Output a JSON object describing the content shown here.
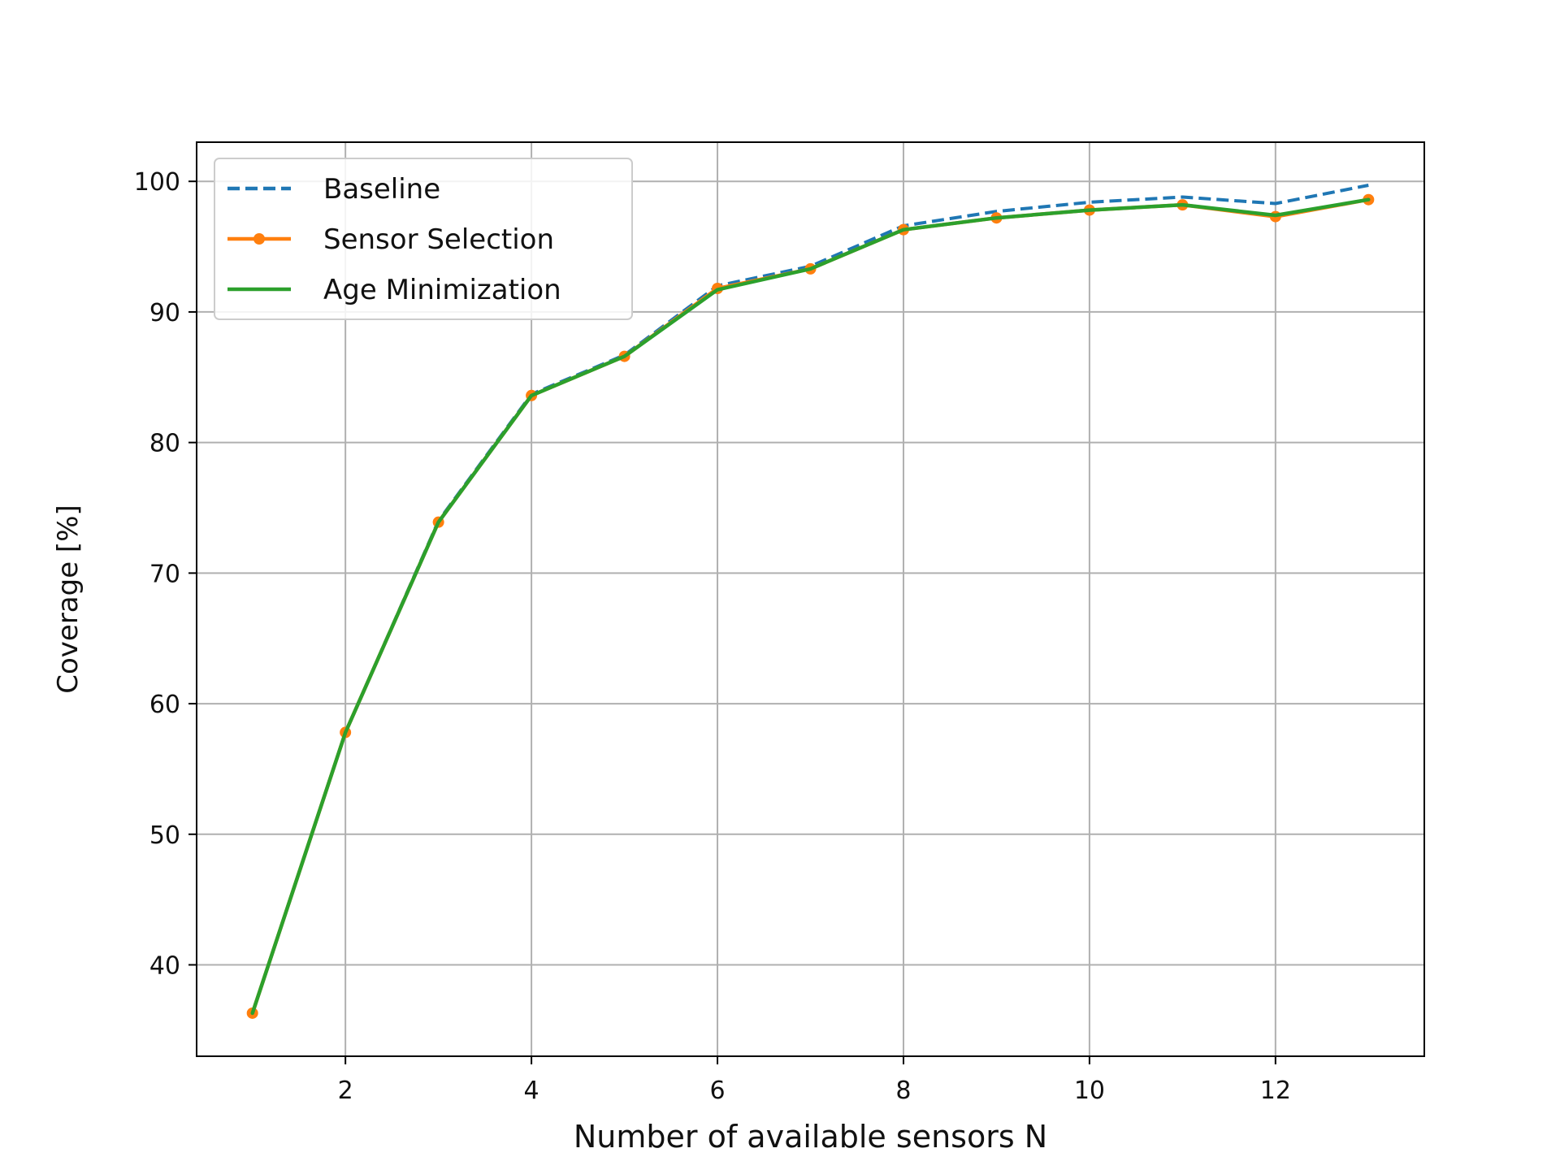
{
  "chart_data": {
    "type": "line",
    "title": "",
    "xlabel": "Number of available sensors N",
    "ylabel": "Coverage [%]",
    "xlim": [
      0.4,
      13.6
    ],
    "ylim": [
      33,
      103
    ],
    "x_ticks": [
      2,
      4,
      6,
      8,
      10,
      12
    ],
    "y_ticks": [
      40,
      50,
      60,
      70,
      80,
      90,
      100
    ],
    "grid": true,
    "legend_position": "top-left",
    "x": [
      1,
      2,
      3,
      4,
      5,
      6,
      7,
      8,
      9,
      10,
      11,
      12,
      13
    ],
    "series": [
      {
        "name": "Baseline",
        "color": "#1f77b4",
        "style": "dashed",
        "marker": "none",
        "values": [
          36.3,
          57.8,
          74.0,
          83.7,
          86.7,
          92.0,
          93.5,
          96.6,
          97.7,
          98.4,
          98.8,
          98.3,
          99.7
        ]
      },
      {
        "name": "Sensor Selection",
        "color": "#ff7f0e",
        "style": "solid",
        "marker": "circle",
        "values": [
          36.3,
          57.8,
          73.9,
          83.6,
          86.6,
          91.8,
          93.3,
          96.3,
          97.2,
          97.8,
          98.2,
          97.3,
          98.6
        ]
      },
      {
        "name": "Age Minimization",
        "color": "#2ca02c",
        "style": "solid",
        "marker": "none",
        "values": [
          36.3,
          57.8,
          73.9,
          83.6,
          86.6,
          91.7,
          93.3,
          96.3,
          97.2,
          97.8,
          98.2,
          97.4,
          98.6
        ]
      }
    ]
  }
}
